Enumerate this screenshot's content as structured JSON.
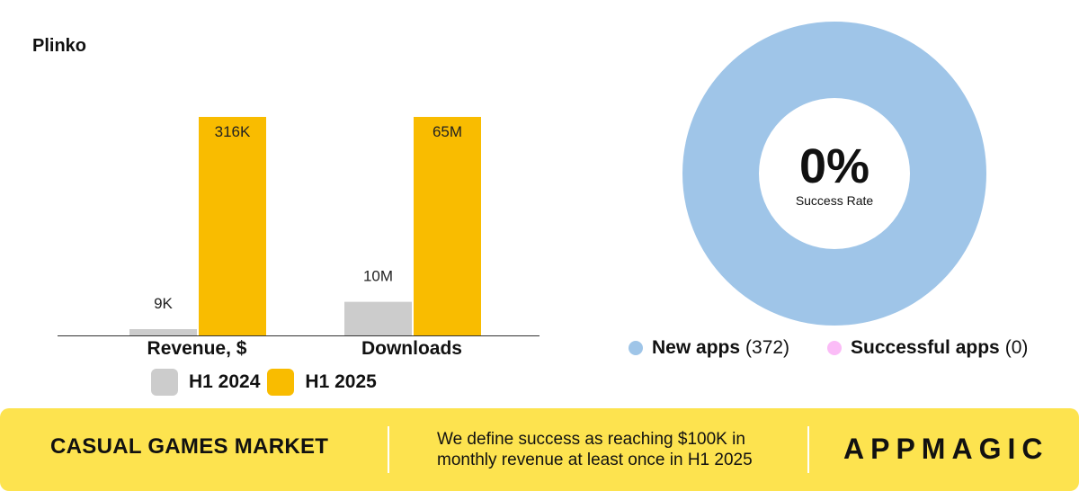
{
  "page_title": "Plinko",
  "chart_data": [
    {
      "type": "bar",
      "title": "Plinko",
      "categories": [
        "Revenue, $",
        "Downloads"
      ],
      "series": [
        {
          "name": "H1 2024",
          "values": [
            9000,
            10000000
          ],
          "labels": [
            "9K",
            "10M"
          ],
          "color": "#cccccc"
        },
        {
          "name": "H1 2025",
          "values": [
            316000,
            65000000
          ],
          "labels": [
            "316K",
            "65M"
          ],
          "color": "#f9bc00"
        }
      ],
      "scaling": "independent per category",
      "legend": "bottom",
      "grid": false
    },
    {
      "type": "pie",
      "donut": true,
      "center_value": "0%",
      "center_label": "Success Rate",
      "slices": [
        {
          "name": "New apps",
          "count_label": "(372)",
          "value": 372,
          "color": "#9fc5e8"
        },
        {
          "name": "Successful apps",
          "count_label": "(0)",
          "value": 0,
          "color": "#fbbcf7"
        }
      ],
      "legend": "bottom"
    }
  ],
  "footer": {
    "title": "CASUAL GAMES MARKET",
    "description": "We define success as reaching $100K in monthly revenue at least once in H1 2025",
    "logo": "APPMAGIC",
    "background": "#fde34f"
  }
}
